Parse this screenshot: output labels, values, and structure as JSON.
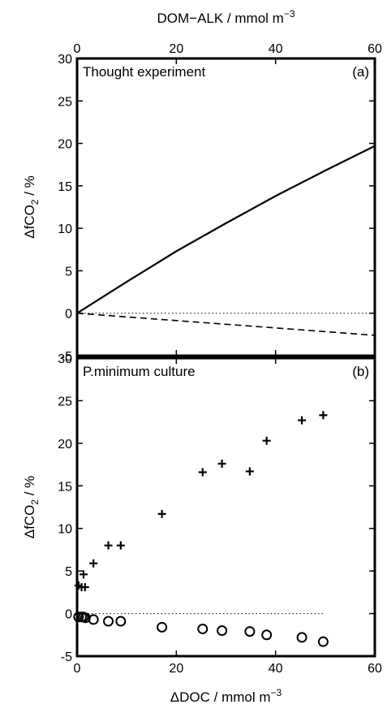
{
  "chart_data": [
    {
      "id": "a",
      "type": "line",
      "panel_label": "(a)",
      "annotation": "Thought experiment",
      "top_xlabel": "DOM−ALK  /  mmol m",
      "top_xlabel_sup": "−3",
      "ylabel": "ΔfCO",
      "ylabel_sub": "2",
      "ylabel_unit": "  /  %",
      "xlim": [
        0,
        60
      ],
      "ylim": [
        -5,
        30
      ],
      "x_ticks": [
        0,
        20,
        40,
        60
      ],
      "y_ticks": [
        -5,
        0,
        5,
        10,
        15,
        20,
        25,
        30
      ],
      "series": [
        {
          "style": "solid",
          "x": [
            0,
            10,
            20,
            30,
            40,
            50,
            60
          ],
          "y": [
            0,
            3.7,
            7.3,
            10.6,
            13.8,
            16.8,
            19.7
          ]
        },
        {
          "style": "dashed",
          "x": [
            0,
            60
          ],
          "y": [
            0,
            -2.6
          ]
        },
        {
          "style": "dotted",
          "x": [
            0,
            60
          ],
          "y": [
            0,
            0
          ]
        }
      ]
    },
    {
      "id": "b",
      "type": "scatter",
      "panel_label": "(b)",
      "annotation": "P.minimum culture",
      "xlabel": "ΔDOC  /  mmol m",
      "xlabel_sup": "−3",
      "ylabel": "ΔfCO",
      "ylabel_sub": "2",
      "ylabel_unit": "  /  %",
      "xlim": [
        0,
        60
      ],
      "ylim": [
        -5,
        30
      ],
      "x_ticks": [
        0,
        20,
        40,
        60
      ],
      "y_ticks": [
        -5,
        0,
        5,
        10,
        15,
        20,
        25,
        30
      ],
      "series": [
        {
          "marker": "plus",
          "x": [
            0.3,
            0.9,
            1.3,
            1.6,
            3.3,
            6.3,
            8.8,
            17.1,
            25.3,
            29.2,
            34.8,
            38.2,
            45.3,
            49.6
          ],
          "y": [
            3.3,
            3.1,
            4.6,
            3.1,
            5.9,
            8.0,
            8.0,
            11.7,
            16.6,
            17.6,
            16.7,
            20.3,
            22.7,
            23.3
          ]
        },
        {
          "marker": "circle",
          "x": [
            0.3,
            0.9,
            1.3,
            1.7,
            3.3,
            6.3,
            8.8,
            17.1,
            25.3,
            29.2,
            34.8,
            38.2,
            45.3,
            49.6
          ],
          "y": [
            -0.4,
            -0.4,
            -0.4,
            -0.5,
            -0.7,
            -0.9,
            -0.9,
            -1.6,
            -1.8,
            -2.0,
            -2.1,
            -2.5,
            -2.8,
            -3.3
          ]
        },
        {
          "style": "dotted",
          "x": [
            0,
            50
          ],
          "y": [
            0,
            0
          ]
        }
      ]
    }
  ]
}
